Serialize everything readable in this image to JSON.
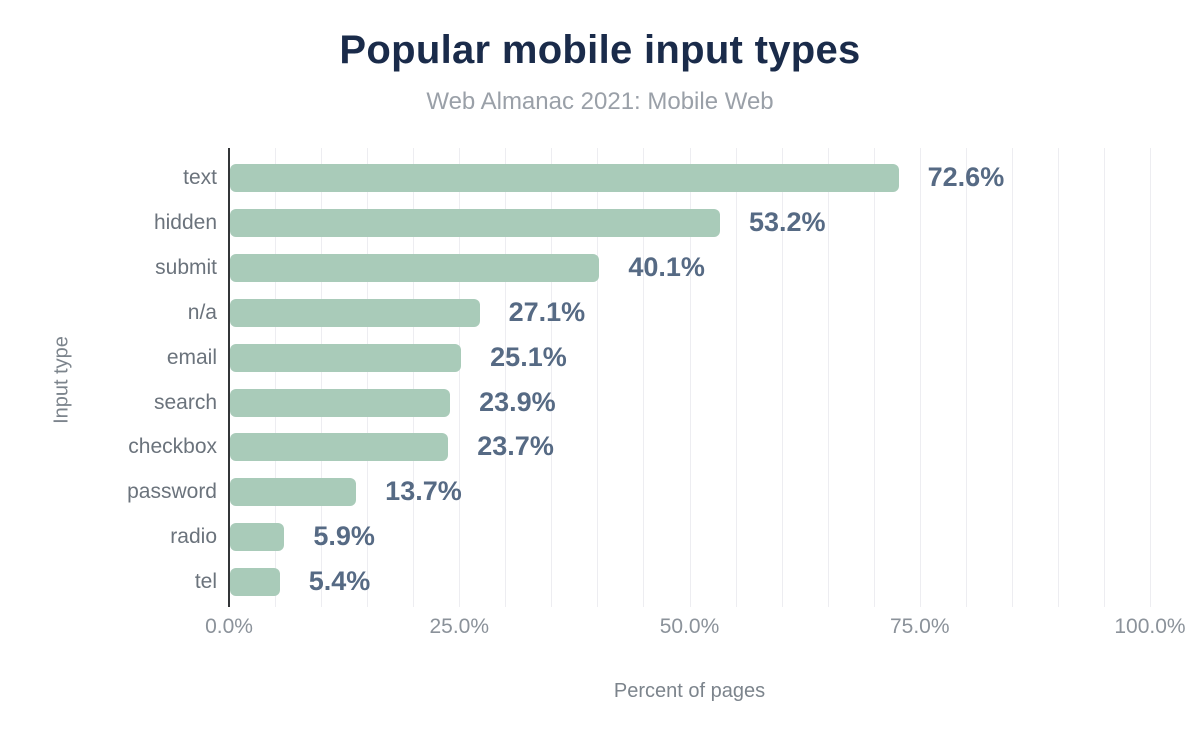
{
  "title": "Popular mobile input types",
  "subtitle": "Web Almanac 2021: Mobile Web",
  "chart_data": {
    "type": "bar",
    "orientation": "horizontal",
    "title": "Popular mobile input types",
    "subtitle": "Web Almanac 2021: Mobile Web",
    "xlabel": "Percent of pages",
    "ylabel": "Input type",
    "categories": [
      "text",
      "hidden",
      "submit",
      "n/a",
      "email",
      "search",
      "checkbox",
      "password",
      "radio",
      "tel"
    ],
    "values": [
      72.6,
      53.2,
      40.1,
      27.1,
      25.1,
      23.9,
      23.7,
      13.7,
      5.9,
      5.4
    ],
    "value_labels": [
      "72.6%",
      "53.2%",
      "40.1%",
      "27.1%",
      "25.1%",
      "23.9%",
      "23.7%",
      "13.7%",
      "5.9%",
      "5.4%"
    ],
    "xlim": [
      0,
      100
    ],
    "x_tick_values": [
      0,
      25,
      50,
      75,
      100
    ],
    "x_tick_labels": [
      "0.0%",
      "25.0%",
      "50.0%",
      "75.0%",
      "100.0%"
    ],
    "grid": true,
    "gridline_interval_percent": 5,
    "legend_position": "none",
    "colors": {
      "bar": "#a9cbb9",
      "value_label": "#566a84",
      "category_label": "#6b737c",
      "tick_label": "#8b929a",
      "axis_title": "#7c848c",
      "title": "#1a2b4a",
      "subtitle": "#9aa0a8",
      "axis_line": "#333538",
      "gridline": "#ededf1",
      "background": "#ffffff"
    }
  }
}
